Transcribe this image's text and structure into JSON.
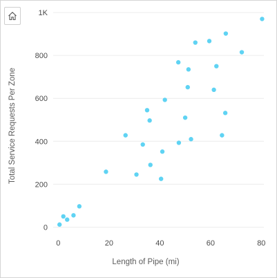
{
  "chart_data": {
    "type": "scatter",
    "xlabel": "Length of Pipe (mi)",
    "ylabel": "Total Service Requests Per Zone",
    "xlim": [
      -2,
      81
    ],
    "ylim": [
      -5,
      1010
    ],
    "x_ticks": [
      0,
      20,
      40,
      60,
      80
    ],
    "y_ticks": [
      0,
      200,
      400,
      600,
      800,
      1000
    ],
    "x_tick_labels": [
      "0",
      "20",
      "40",
      "60",
      "80"
    ],
    "y_tick_labels": [
      "0",
      "200",
      "400",
      "600",
      "800",
      "1K"
    ],
    "grid": "horizontal",
    "point_color": "#5fd3f3",
    "points": [
      {
        "x": 0.5,
        "y": 12
      },
      {
        "x": 2,
        "y": 50
      },
      {
        "x": 3.5,
        "y": 35
      },
      {
        "x": 6,
        "y": 55
      },
      {
        "x": 8.3,
        "y": 97
      },
      {
        "x": 18.8,
        "y": 258
      },
      {
        "x": 26.5,
        "y": 428
      },
      {
        "x": 30.8,
        "y": 245
      },
      {
        "x": 33.3,
        "y": 385
      },
      {
        "x": 35,
        "y": 545
      },
      {
        "x": 36,
        "y": 497
      },
      {
        "x": 36.3,
        "y": 290
      },
      {
        "x": 40.5,
        "y": 225
      },
      {
        "x": 41,
        "y": 352
      },
      {
        "x": 42,
        "y": 593
      },
      {
        "x": 47.3,
        "y": 768
      },
      {
        "x": 47.5,
        "y": 393
      },
      {
        "x": 50,
        "y": 510
      },
      {
        "x": 51,
        "y": 652
      },
      {
        "x": 51.3,
        "y": 735
      },
      {
        "x": 52.3,
        "y": 410
      },
      {
        "x": 54,
        "y": 860
      },
      {
        "x": 59.5,
        "y": 867
      },
      {
        "x": 61.3,
        "y": 640
      },
      {
        "x": 62.3,
        "y": 750
      },
      {
        "x": 64.5,
        "y": 428
      },
      {
        "x": 65.8,
        "y": 532
      },
      {
        "x": 66,
        "y": 902
      },
      {
        "x": 72.3,
        "y": 815
      },
      {
        "x": 80.3,
        "y": 970
      }
    ]
  }
}
